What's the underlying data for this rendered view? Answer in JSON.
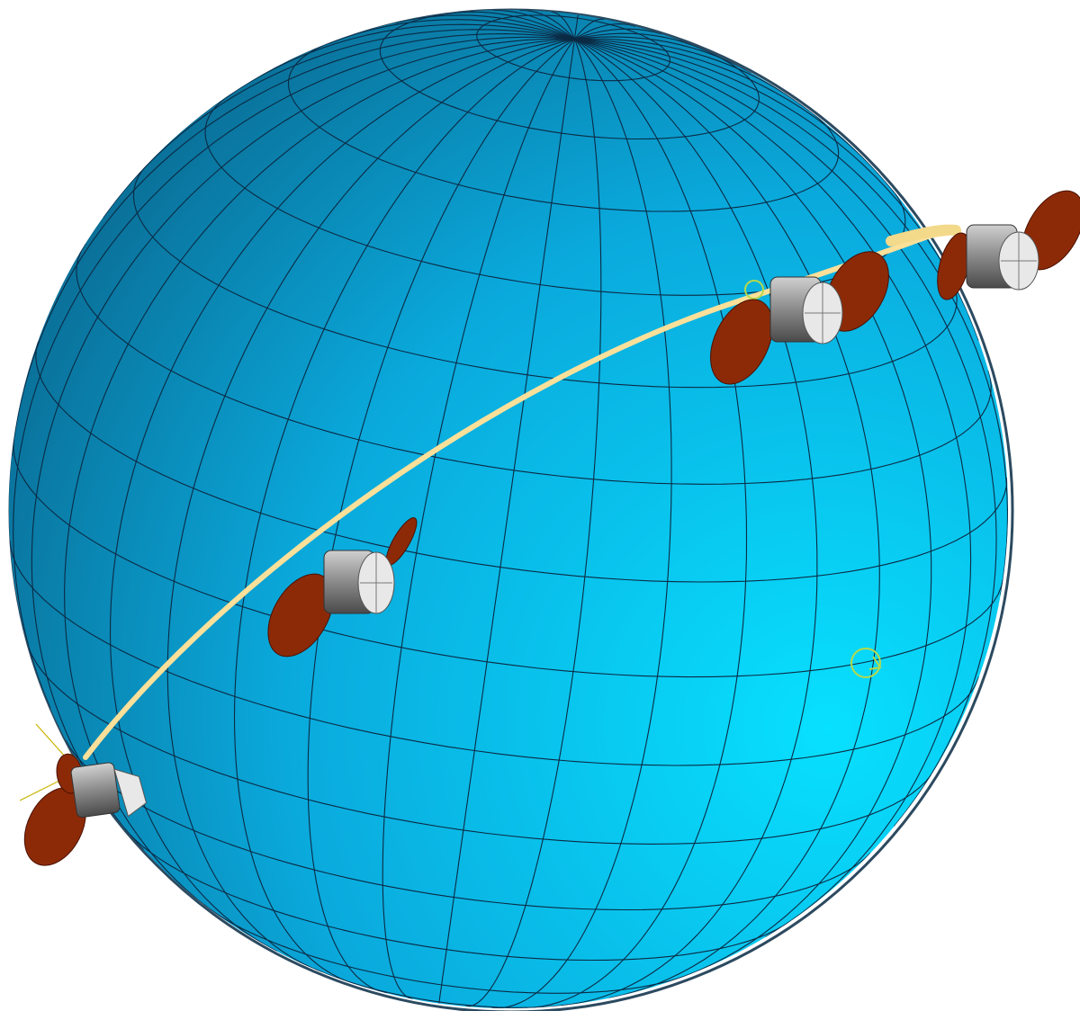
{
  "scene": {
    "background": "#ffffff",
    "globe": {
      "light_color": "#08e0ff",
      "mid_color": "#0aa9dc",
      "dark_color": "#0a5f84",
      "grid_color": "#0b2a44",
      "latitude_count": 16,
      "meridian_count": 36
    },
    "orbit": {
      "color": "#fbe09a"
    },
    "spacecraft": {
      "body_color": "#9a9a9a",
      "face_color": "#e8e8e8",
      "dish_color": "#8c2a08",
      "instances": [
        "craft-bottom-left",
        "craft-middle",
        "craft-upper",
        "craft-top-right"
      ]
    },
    "markers": {
      "color": "#b7d94a"
    }
  }
}
